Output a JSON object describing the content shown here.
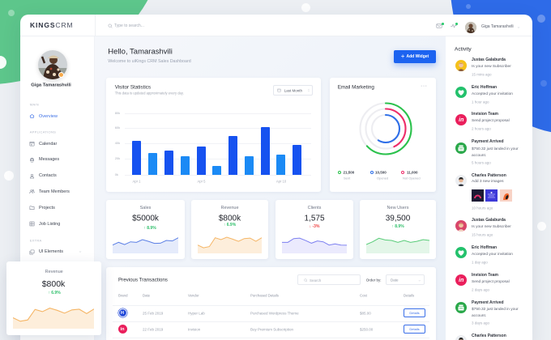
{
  "app": {
    "logo_bold": "KINGS",
    "logo_light": "CRM"
  },
  "header": {
    "search_placeholder": "Type to search...",
    "user_name": "Giga Tamarashvili",
    "notification_dot_color": "#2ecc71"
  },
  "sidebar": {
    "user_name": "Giga Tamarashvili",
    "status_color": "#f6a94a",
    "sections": {
      "main": "MAIN",
      "applications": "APPLICATIONS",
      "extra": "EXTRA"
    },
    "items": [
      {
        "label": "Overview",
        "icon": "home",
        "active": true
      },
      {
        "label": "Calendar",
        "icon": "calendar"
      },
      {
        "label": "Messages",
        "icon": "messages"
      },
      {
        "label": "Contacts",
        "icon": "contacts"
      },
      {
        "label": "Team Members",
        "icon": "team"
      },
      {
        "label": "Projects",
        "icon": "folder"
      },
      {
        "label": "Job Listing",
        "icon": "job-listing"
      },
      {
        "label": "UI Elements",
        "icon": "ui-elements",
        "expandable": true
      }
    ]
  },
  "main": {
    "greeting": "Hello, Tamarashvili",
    "subtitle": "Welcome to uiKings CRM Sales Dashboard",
    "add_widget": {
      "icon": "+",
      "label": "Add Widget",
      "color": "#1c63f0"
    },
    "visitor_statistics": {
      "title": "Visitor Statistics",
      "subtitle": "This data is updated approximately every day.",
      "filter": "Last Month",
      "y_ticks": [
        "80k",
        "60k",
        "40k",
        "20k",
        "0k"
      ],
      "y_max": 80,
      "x_labels": [
        "Apr 1",
        "Apr 5",
        "Apr 10"
      ],
      "values": [
        44,
        28,
        32,
        24,
        37,
        12,
        51,
        24,
        62,
        26,
        39
      ],
      "colors": {
        "primary": "#1652f0",
        "secondary": "#1b8af5"
      }
    },
    "email_marketing": {
      "title": "Email Marketing",
      "menu": "···",
      "rings": {
        "sent": {
          "label": "Sent",
          "value": "21,500",
          "color": "#2bc24c",
          "fraction": 0.63
        },
        "opened": {
          "label": "Opened",
          "value": "10,500",
          "color": "#2f6fe8",
          "fraction": 0.59
        },
        "not_opened": {
          "label": "Not Opened",
          "value": "11,000",
          "color": "#ee2d6a",
          "fraction": 0.43
        }
      }
    },
    "stats": [
      {
        "title": "Sales",
        "value": "$5000k",
        "change": "↑ 8.9%",
        "change_color": "#2fbf6a",
        "spark": {
          "stroke": "#5b7fe5",
          "fill": "#e5ebfb",
          "points": [
            0.49,
            0.65,
            0.52,
            0.68,
            0.65,
            0.81,
            0.71,
            0.59,
            0.6,
            0.76,
            0.73,
            0.92
          ]
        }
      },
      {
        "title": "Revenue",
        "value": "$800k",
        "change": "↑ 6.9%",
        "change_color": "#2fbf6a",
        "spark": {
          "stroke": "#f5b565",
          "fill": "#fdeedb",
          "points": [
            0.49,
            0.33,
            0.4,
            0.92,
            0.81,
            0.95,
            0.84,
            0.71,
            0.87,
            0.9,
            0.71,
            0.92
          ]
        }
      },
      {
        "title": "Clients",
        "value": "1,575",
        "change": "↓ -3%",
        "change_color": "#ef4444",
        "spark": {
          "stroke": "#7d80f0",
          "fill": "#ebeafd",
          "points": [
            0.65,
            0.65,
            0.87,
            0.9,
            0.76,
            0.6,
            0.73,
            0.68,
            0.49,
            0.56,
            0.49,
            0.48
          ]
        }
      },
      {
        "title": "New Users",
        "value": "39,500",
        "change": "↑ 8.9%",
        "change_color": "#2fbf6a",
        "spark": {
          "stroke": "#58cc78",
          "fill": "#e3f6e8",
          "points": [
            0.52,
            0.68,
            0.89,
            0.79,
            0.76,
            0.65,
            0.76,
            0.65,
            0.71,
            0.81,
            0.76
          ]
        }
      }
    ],
    "transactions": {
      "title": "Previous Transactions",
      "search_placeholder": "Search",
      "order_by_label": "Order by:",
      "order_by_value": "Date",
      "columns": [
        "Brand",
        "Date",
        "Vendor",
        "Purchased Details",
        "Cost",
        "Details"
      ],
      "rows": [
        {
          "brand": "H",
          "brand_color": "#1d45d8",
          "date": "25 Feb 2019",
          "vendor": "Hyper Lab",
          "details": "Purchased Wordpress Theme",
          "cost": "$85.00",
          "action": "Details"
        },
        {
          "brand": "in",
          "brand_color": "#ea1f5c",
          "date": "22 Feb 2019",
          "vendor": "Invision",
          "details": "Buy Premium Subscription",
          "cost": "$250.00",
          "action": "Details"
        }
      ]
    }
  },
  "activity": {
    "title": "Activity",
    "items": [
      {
        "name": "Justas Galaburda",
        "desc": "Is your new Subscriber",
        "time": "15 mins ago",
        "icon": "avatar"
      },
      {
        "name": "Eric Hoffman",
        "desc": "Accepted your invitation",
        "time": "1 hour ago",
        "icon": "heart"
      },
      {
        "name": "Invision Team",
        "desc": "Send project proposal",
        "time": "2 hours ago",
        "icon": "invision",
        "badge": "in"
      },
      {
        "name": "Payment Arrived",
        "desc": "$750.32 just landed in your account.",
        "time": "5 hours ago",
        "icon": "wallet"
      },
      {
        "name": "Charles Patterson",
        "desc": "Add 3 new images",
        "time": "10 hours ago",
        "icon": "avatar",
        "images": 3
      },
      {
        "name": "Justas Galaburda",
        "desc": "Is your new Subscriber",
        "time": "15 hours ago",
        "icon": "avatar"
      },
      {
        "name": "Eric Hoffman",
        "desc": "Accepted your invitation",
        "time": "1 day ago",
        "icon": "heart"
      },
      {
        "name": "Invision Team",
        "desc": "Send project proposal",
        "time": "2 days ago",
        "icon": "invision",
        "badge": "in"
      },
      {
        "name": "Payment Arrived",
        "desc": "$750.32 just landed in your account.",
        "time": "3 days ago",
        "icon": "wallet"
      },
      {
        "name": "Charles Patterson",
        "icon": "avatar"
      }
    ]
  },
  "floating_card": {
    "title": "Revenue",
    "value": "$800k",
    "change": "↑ 6.9%",
    "change_color": "#2fbf6a",
    "spark": {
      "stroke": "#f5b565",
      "fill": "#fdeedb",
      "points": [
        0.5,
        0.34,
        0.4,
        0.88,
        0.78,
        0.94,
        0.84,
        0.71,
        0.86,
        0.89,
        0.69,
        0.9
      ]
    }
  }
}
